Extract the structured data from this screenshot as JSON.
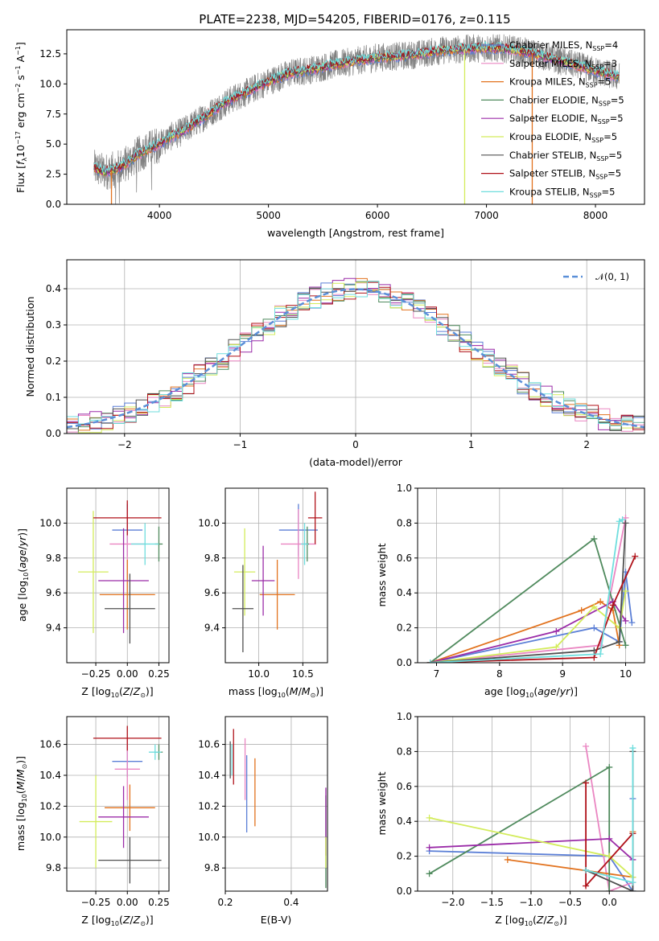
{
  "figure": {
    "title": "PLATE=2238, MJD=54205, FIBERID=0176, z=0.115"
  },
  "models": [
    {
      "name": "Chabrier MILES",
      "nssp": "4",
      "color": "#5b7fd6"
    },
    {
      "name": "Salpeter MILES",
      "nssp": "3",
      "color": "#ea86c2"
    },
    {
      "name": "Kroupa MILES",
      "nssp": "5",
      "color": "#e2731f"
    },
    {
      "name": "Chabrier ELODIE",
      "nssp": "5",
      "color": "#4f8a5d"
    },
    {
      "name": "Salpeter ELODIE",
      "nssp": "5",
      "color": "#9b2ca8"
    },
    {
      "name": "Kroupa ELODIE",
      "nssp": "5",
      "color": "#d3ec5b"
    },
    {
      "name": "Chabrier STELIB",
      "nssp": "5",
      "color": "#505050"
    },
    {
      "name": "Salpeter STELIB",
      "nssp": "5",
      "color": "#b0121a"
    },
    {
      "name": "Kroupa STELIB",
      "nssp": "5",
      "color": "#6fdede"
    }
  ],
  "chart_data": [
    {
      "id": "spectrum",
      "type": "line",
      "title": "PLATE=2238, MJD=54205, FIBERID=0176, z=0.115",
      "xlabel": "wavelength [Angstrom, rest frame]",
      "ylabel": "Flux [fλ10⁻¹⁷ erg cm⁻² s⁻¹ A⁻¹]",
      "xlim": [
        3150,
        8450
      ],
      "ylim": [
        0,
        14.5
      ],
      "xticks": [
        4000,
        5000,
        6000,
        7000,
        8000
      ],
      "yticks": [
        0.0,
        2.5,
        5.0,
        7.5,
        10.0,
        12.5
      ],
      "grid": false,
      "legend": "upper right",
      "continuum": {
        "x": [
          3400,
          3500,
          3600,
          3700,
          3800,
          3900,
          4000,
          4100,
          4200,
          4300,
          4400,
          4500,
          4600,
          4700,
          4800,
          5000,
          5200,
          5400,
          5600,
          5800,
          6000,
          6200,
          6400,
          6600,
          6800,
          7000,
          7200,
          7400,
          7600,
          7800,
          8000,
          8200
        ],
        "y": [
          3.0,
          2.7,
          2.9,
          3.4,
          4.1,
          4.6,
          5.0,
          5.6,
          6.0,
          6.6,
          7.2,
          7.8,
          8.4,
          8.9,
          9.3,
          10.2,
          10.9,
          11.2,
          11.6,
          11.9,
          12.2,
          12.3,
          12.5,
          12.8,
          12.9,
          13.0,
          12.9,
          12.6,
          12.1,
          11.6,
          11.1,
          10.6
        ]
      },
      "data_noise_amplitude": 1.2,
      "dropouts": [
        {
          "model": "Kroupa MILES",
          "x": 3560
        },
        {
          "model": "Kroupa ELODIE",
          "x": 6800
        },
        {
          "model": "Kroupa MILES",
          "x": 7420
        }
      ]
    },
    {
      "id": "residuals",
      "type": "histogram",
      "xlabel": "(data-model)/error",
      "ylabel": "Normed distribution",
      "xlim": [
        -2.5,
        2.5
      ],
      "ylim": [
        0,
        0.48
      ],
      "xticks": [
        -2,
        -1,
        0,
        1,
        2
      ],
      "yticks": [
        0.0,
        0.1,
        0.2,
        0.3,
        0.4
      ],
      "grid": true,
      "legend": "upper right",
      "reference_curve": {
        "name": "𝒩(0, 1)",
        "mean": 0,
        "sigma": 1,
        "color": "#5a8fd8"
      },
      "bin_width": 0.1
    },
    {
      "id": "age_vs_Z",
      "type": "errorbar",
      "xlabel": "Z [log₁₀(Z/Z⊙)]",
      "ylabel": "age  [log₁₀(age/yr)]",
      "xlim": [
        -0.48,
        0.33
      ],
      "ylim": [
        9.2,
        10.2
      ],
      "xticks": [
        -0.25,
        0.0,
        0.25
      ],
      "yticks": [
        9.4,
        9.6,
        9.8,
        10.0
      ],
      "grid": true,
      "points": [
        {
          "model": "Chabrier MILES",
          "x": 0.0,
          "xerr": 0.12,
          "y": 9.96,
          "yerr": 0.15
        },
        {
          "model": "Salpeter MILES",
          "x": 0.0,
          "xerr": 0.14,
          "y": 9.88,
          "yerr": 0.2
        },
        {
          "model": "Kroupa MILES",
          "x": 0.0,
          "xerr": 0.22,
          "y": 9.59,
          "yerr": 0.2
        },
        {
          "model": "Chabrier ELODIE",
          "x": 0.25,
          "xerr": 0.03,
          "y": 9.88,
          "yerr": 0.1
        },
        {
          "model": "Salpeter ELODIE",
          "x": -0.03,
          "xerr": 0.2,
          "y": 9.67,
          "yerr": 0.3
        },
        {
          "model": "Kroupa ELODIE",
          "x": -0.27,
          "xerr": 0.12,
          "y": 9.72,
          "yerr": 0.35
        },
        {
          "model": "Chabrier STELIB",
          "x": 0.02,
          "xerr": 0.2,
          "y": 9.51,
          "yerr": 0.2
        },
        {
          "model": "Salpeter STELIB",
          "x": 0.0,
          "xerr": 0.27,
          "y": 10.03,
          "yerr": 0.1
        },
        {
          "model": "Kroupa STELIB",
          "x": 0.14,
          "xerr": 0.11,
          "y": 9.88,
          "yerr": 0.12
        }
      ]
    },
    {
      "id": "age_vs_mass",
      "type": "errorbar",
      "xlabel": "mass [log₁₀(M/M⊙)]",
      "ylabel": "",
      "xlim": [
        9.62,
        10.78
      ],
      "ylim": [
        9.2,
        10.2
      ],
      "xticks": [
        10.0,
        10.5
      ],
      "yticks": [
        9.4,
        9.6,
        9.8,
        10.0
      ],
      "grid": true,
      "points": [
        {
          "model": "Chabrier MILES",
          "x": 10.45,
          "xerr": 0.22,
          "y": 9.96,
          "yerr": 0.15
        },
        {
          "model": "Salpeter MILES",
          "x": 10.45,
          "xerr": 0.2,
          "y": 9.88,
          "yerr": 0.2
        },
        {
          "model": "Kroupa MILES",
          "x": 10.21,
          "xerr": 0.2,
          "y": 9.59,
          "yerr": 0.2
        },
        {
          "model": "Chabrier ELODIE",
          "x": 10.55,
          "xerr": 0.02,
          "y": 9.88,
          "yerr": 0.1
        },
        {
          "model": "Salpeter ELODIE",
          "x": 10.05,
          "xerr": 0.13,
          "y": 9.67,
          "yerr": 0.2
        },
        {
          "model": "Kroupa ELODIE",
          "x": 9.84,
          "xerr": 0.12,
          "y": 9.72,
          "yerr": 0.25
        },
        {
          "model": "Chabrier STELIB",
          "x": 9.82,
          "xerr": 0.12,
          "y": 9.51,
          "yerr": 0.25
        },
        {
          "model": "Salpeter STELIB",
          "x": 10.64,
          "xerr": 0.08,
          "y": 10.03,
          "yerr": 0.15
        },
        {
          "model": "Kroupa STELIB",
          "x": 10.52,
          "xerr": 0.04,
          "y": 9.88,
          "yerr": 0.12
        }
      ]
    },
    {
      "id": "mass_vs_Z",
      "type": "errorbar",
      "xlabel": "Z [log₁₀(Z/Z⊙)]",
      "ylabel": "mass [log₁₀(M/M⊙)]",
      "xlim": [
        -0.48,
        0.33
      ],
      "ylim": [
        9.65,
        10.78
      ],
      "xticks": [
        -0.25,
        0.0,
        0.25
      ],
      "yticks": [
        9.8,
        10.0,
        10.2,
        10.4,
        10.6
      ],
      "grid": true,
      "points": [
        {
          "model": "Chabrier MILES",
          "x": 0.0,
          "xerr": 0.12,
          "y": 10.49,
          "yerr": 0.1
        },
        {
          "model": "Salpeter MILES",
          "x": 0.0,
          "xerr": 0.1,
          "y": 10.44,
          "yerr": 0.2
        },
        {
          "model": "Kroupa MILES",
          "x": 0.02,
          "xerr": 0.2,
          "y": 10.19,
          "yerr": 0.15
        },
        {
          "model": "Chabrier ELODIE",
          "x": 0.25,
          "xerr": 0.03,
          "y": 10.55,
          "yerr": 0.05
        },
        {
          "model": "Salpeter ELODIE",
          "x": -0.03,
          "xerr": 0.2,
          "y": 10.13,
          "yerr": 0.2
        },
        {
          "model": "Kroupa ELODIE",
          "x": -0.25,
          "xerr": 0.13,
          "y": 10.1,
          "yerr": 0.3
        },
        {
          "model": "Chabrier STELIB",
          "x": 0.02,
          "xerr": 0.25,
          "y": 9.85,
          "yerr": 0.15
        },
        {
          "model": "Salpeter STELIB",
          "x": 0.0,
          "xerr": 0.27,
          "y": 10.64,
          "yerr": 0.08
        },
        {
          "model": "Kroupa STELIB",
          "x": 0.22,
          "xerr": 0.05,
          "y": 10.55,
          "yerr": 0.05
        }
      ]
    },
    {
      "id": "mass_vs_EBV",
      "type": "errorbar",
      "xlabel": "E(B-V)",
      "ylabel": "",
      "xlim": [
        0.2,
        0.51
      ],
      "ylim": [
        9.65,
        10.78
      ],
      "xticks": [
        0.2,
        0.4
      ],
      "yticks": [
        9.8,
        10.0,
        10.2,
        10.4,
        10.6
      ],
      "grid": true,
      "points": [
        {
          "model": "Chabrier MILES",
          "x": 0.265,
          "xerr": 0,
          "y": 10.28,
          "yerr": 0.25
        },
        {
          "model": "Salpeter MILES",
          "x": 0.26,
          "xerr": 0,
          "y": 10.44,
          "yerr": 0.2
        },
        {
          "model": "Kroupa MILES",
          "x": 0.29,
          "xerr": 0,
          "y": 10.29,
          "yerr": 0.22
        },
        {
          "model": "Chabrier ELODIE",
          "x": 0.505,
          "xerr": 0,
          "y": 9.97,
          "yerr": 0.3
        },
        {
          "model": "Salpeter ELODIE",
          "x": 0.505,
          "xerr": 0,
          "y": 10.1,
          "yerr": 0.22
        },
        {
          "model": "Kroupa ELODIE",
          "x": 0.505,
          "xerr": 0,
          "y": 9.9,
          "yerr": 0.1
        },
        {
          "model": "Chabrier STELIB",
          "x": 0.215,
          "xerr": 0,
          "y": 10.5,
          "yerr": 0.12
        },
        {
          "model": "Salpeter STELIB",
          "x": 0.225,
          "xerr": 0,
          "y": 10.52,
          "yerr": 0.18
        },
        {
          "model": "Kroupa STELIB",
          "x": 0.22,
          "xerr": 0,
          "y": 10.5,
          "yerr": 0.1
        }
      ]
    },
    {
      "id": "weight_vs_age",
      "type": "line",
      "xlabel": "age  [log₁₀(age/yr)]",
      "ylabel": "mass weight",
      "xlim": [
        6.7,
        10.3
      ],
      "ylim": [
        0,
        1.0
      ],
      "xticks": [
        7,
        8,
        9,
        10
      ],
      "yticks": [
        0.0,
        0.2,
        0.4,
        0.6,
        0.8,
        1.0
      ],
      "grid": true,
      "series": [
        {
          "model": "Chabrier MILES",
          "x": [
            6.9,
            9.5,
            9.9,
            10.0,
            10.1
          ],
          "y": [
            0.0,
            0.2,
            0.12,
            0.52,
            0.23
          ]
        },
        {
          "model": "Salpeter MILES",
          "x": [
            6.9,
            9.6,
            10.0
          ],
          "y": [
            0.0,
            0.1,
            0.83
          ]
        },
        {
          "model": "Kroupa MILES",
          "x": [
            6.9,
            9.3,
            9.6,
            9.8,
            9.9
          ],
          "y": [
            0.0,
            0.3,
            0.35,
            0.3,
            0.1
          ]
        },
        {
          "model": "Chabrier ELODIE",
          "x": [
            6.9,
            9.5,
            10.0
          ],
          "y": [
            0.0,
            0.71,
            0.1
          ]
        },
        {
          "model": "Salpeter ELODIE",
          "x": [
            6.9,
            8.9,
            9.8,
            10.0
          ],
          "y": [
            0.0,
            0.18,
            0.35,
            0.24
          ]
        },
        {
          "model": "Kroupa ELODIE",
          "x": [
            6.9,
            8.9,
            9.5,
            9.9,
            10.0
          ],
          "y": [
            0.0,
            0.09,
            0.32,
            0.2,
            0.41
          ]
        },
        {
          "model": "Chabrier STELIB",
          "x": [
            6.9,
            9.5,
            9.9,
            10.0
          ],
          "y": [
            0.0,
            0.07,
            0.12,
            0.8
          ]
        },
        {
          "model": "Salpeter STELIB",
          "x": [
            6.9,
            9.5,
            9.8,
            10.15
          ],
          "y": [
            0.0,
            0.03,
            0.33,
            0.61
          ]
        },
        {
          "model": "Kroupa STELIB",
          "x": [
            6.9,
            9.6,
            9.9,
            9.95
          ],
          "y": [
            0.0,
            0.05,
            0.81,
            0.82
          ]
        }
      ]
    },
    {
      "id": "weight_vs_Z",
      "type": "line",
      "xlabel": "Z [log₁₀(Z/Z⊙)]",
      "ylabel": "mass weight",
      "xlim": [
        -2.45,
        0.45
      ],
      "ylim": [
        0,
        1.0
      ],
      "xticks": [
        -2.0,
        -1.5,
        -1.0,
        -0.5,
        0.0
      ],
      "yticks": [
        0.0,
        0.2,
        0.4,
        0.6,
        0.8,
        1.0
      ],
      "grid": true,
      "series": [
        {
          "model": "Chabrier MILES",
          "x": [
            -2.3,
            0.0,
            0.3,
            0.3
          ],
          "y": [
            0.23,
            0.2,
            0.0,
            0.53
          ]
        },
        {
          "model": "Salpeter MILES",
          "x": [
            -0.3,
            0.0,
            0.3
          ],
          "y": [
            0.83,
            0.0,
            0.05
          ]
        },
        {
          "model": "Kroupa MILES",
          "x": [
            -1.3,
            0.3,
            0.3
          ],
          "y": [
            0.18,
            0.08,
            0.34
          ]
        },
        {
          "model": "Chabrier ELODIE",
          "x": [
            -2.3,
            0.0,
            0.0
          ],
          "y": [
            0.1,
            0.71,
            0.0
          ]
        },
        {
          "model": "Salpeter ELODIE",
          "x": [
            -2.3,
            0.0,
            0.3
          ],
          "y": [
            0.25,
            0.3,
            0.18
          ]
        },
        {
          "model": "Kroupa ELODIE",
          "x": [
            -2.3,
            0.0,
            0.3
          ],
          "y": [
            0.42,
            0.2,
            0.08
          ]
        },
        {
          "model": "Chabrier STELIB",
          "x": [
            -0.3,
            0.3,
            0.3
          ],
          "y": [
            0.12,
            0.0,
            0.8
          ]
        },
        {
          "model": "Salpeter STELIB",
          "x": [
            -0.3,
            -0.3,
            0.3
          ],
          "y": [
            0.62,
            0.03,
            0.33
          ]
        },
        {
          "model": "Kroupa STELIB",
          "x": [
            -0.3,
            0.3,
            0.3
          ],
          "y": [
            0.12,
            0.05,
            0.82
          ]
        }
      ]
    }
  ]
}
